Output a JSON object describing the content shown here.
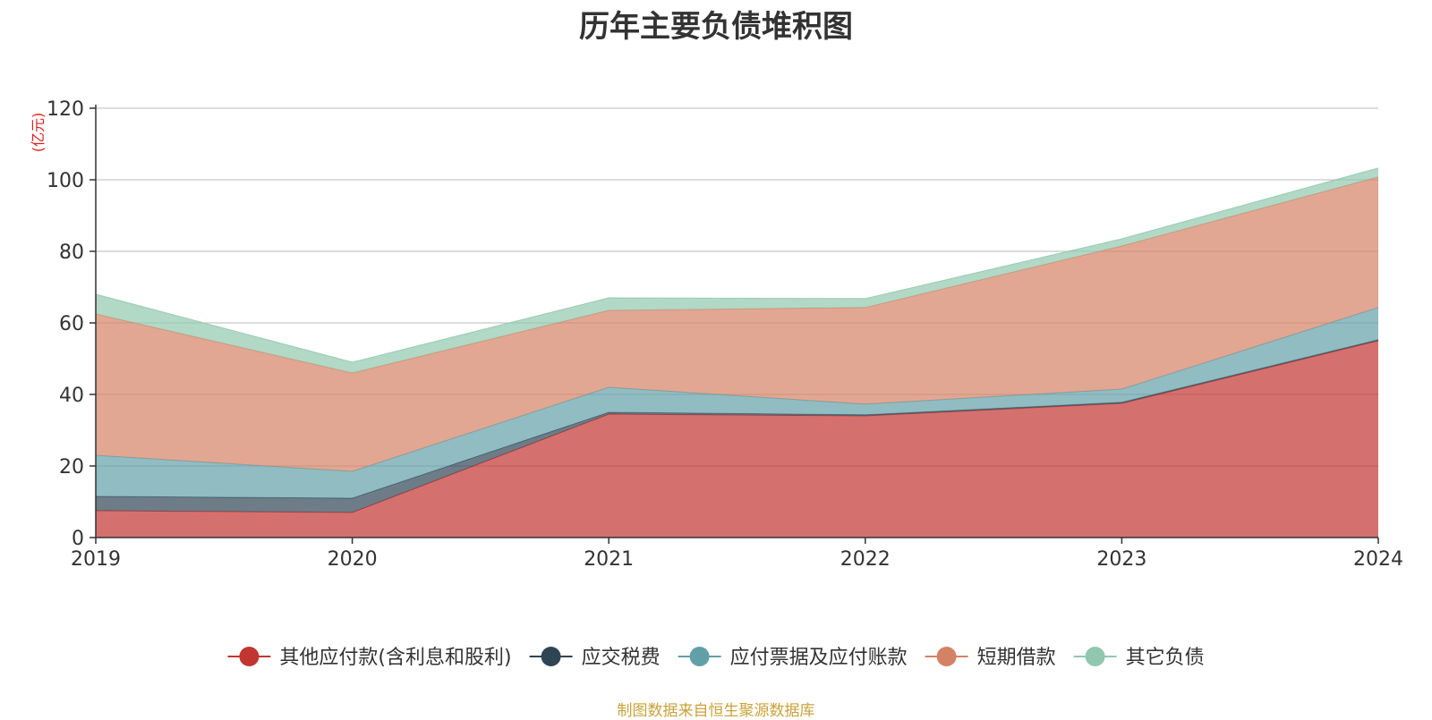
{
  "chart_data": {
    "type": "area",
    "stacked": true,
    "title": "历年主要负债堆积图",
    "unit_label": "(亿元)",
    "x": [
      "2019",
      "2020",
      "2021",
      "2022",
      "2023",
      "2024"
    ],
    "ylim": [
      0,
      120
    ],
    "yticks": [
      0,
      20,
      40,
      60,
      80,
      100,
      120
    ],
    "grid": true,
    "legend_position": "bottom",
    "series": [
      {
        "name": "其他应付款(含利息和股利)",
        "color": "#c23531",
        "values": [
          7.5,
          7.0,
          34.5,
          34.0,
          37.5,
          55.0
        ]
      },
      {
        "name": "应交税费",
        "color": "#2f4554",
        "values": [
          4.0,
          4.0,
          0.5,
          0.3,
          0.3,
          0.3
        ]
      },
      {
        "name": "应付票据及应付账款",
        "color": "#61a0a8",
        "values": [
          11.5,
          7.5,
          7.0,
          3.0,
          3.7,
          9.0
        ]
      },
      {
        "name": "短期借款",
        "color": "#d48265",
        "values": [
          39.5,
          27.5,
          21.5,
          27.0,
          40.0,
          36.5
        ]
      },
      {
        "name": "其它负债",
        "color": "#91c7ae",
        "values": [
          5.5,
          3.0,
          3.5,
          2.5,
          2.0,
          2.5
        ]
      }
    ]
  },
  "source_note": "制图数据来自恒生聚源数据库"
}
